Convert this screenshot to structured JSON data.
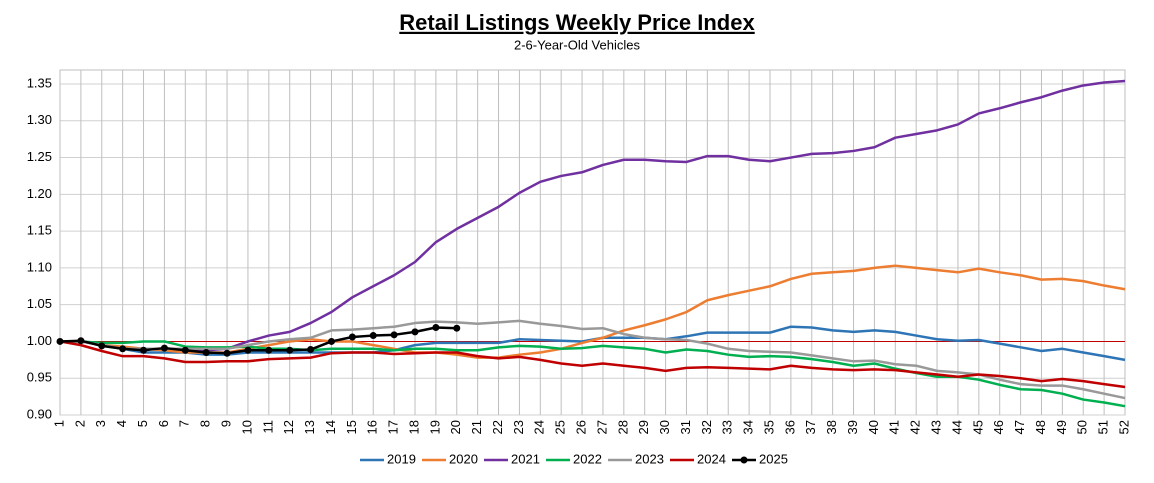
{
  "chart_data": {
    "type": "line",
    "title": "Retail Listings Weekly Price Index",
    "subtitle": "2-6-Year-Old Vehicles",
    "categories": [
      "1",
      "2",
      "3",
      "4",
      "5",
      "6",
      "7",
      "8",
      "9",
      "10",
      "11",
      "12",
      "13",
      "14",
      "15",
      "16",
      "17",
      "18",
      "19",
      "20",
      "21",
      "22",
      "23",
      "24",
      "25",
      "26",
      "27",
      "28",
      "29",
      "30",
      "31",
      "32",
      "33",
      "34",
      "35",
      "36",
      "37",
      "38",
      "39",
      "40",
      "41",
      "42",
      "43",
      "44",
      "45",
      "46",
      "47",
      "48",
      "49",
      "50",
      "51",
      "52"
    ],
    "ylim": [
      0.9,
      1.35
    ],
    "yticks": [
      {
        "value": 0.9,
        "label": "0.90"
      },
      0.95,
      {
        "value": 1.0,
        "label": "1.00"
      },
      1.05,
      {
        "value": 1.1,
        "label": "1.10"
      },
      1.15,
      {
        "value": 1.2,
        "label": "1.20"
      },
      1.25,
      {
        "value": 1.3,
        "label": "1.30"
      },
      1.35
    ],
    "grid": true,
    "legend": "bottom",
    "reference_line": {
      "value": 1.0,
      "color": "#c00000"
    },
    "series": [
      {
        "name": "2019",
        "color": "#2e75b6",
        "values": [
          1.0,
          1.0,
          0.995,
          0.99,
          0.985,
          0.985,
          0.985,
          0.982,
          0.982,
          0.985,
          0.985,
          0.985,
          0.985,
          0.985,
          0.985,
          0.985,
          0.988,
          0.995,
          0.998,
          0.998,
          0.998,
          0.998,
          1.003,
          1.002,
          1.001,
          1.0,
          1.005,
          1.005,
          1.005,
          1.003,
          1.007,
          1.012,
          1.012,
          1.012,
          1.012,
          1.02,
          1.019,
          1.015,
          1.013,
          1.015,
          1.013,
          1.008,
          1.003,
          1.001,
          1.002,
          0.997,
          0.992,
          0.987,
          0.99,
          0.985,
          0.98,
          0.975
        ]
      },
      {
        "name": "2020",
        "color": "#ed7d31",
        "values": [
          1.0,
          1.0,
          0.995,
          0.993,
          0.99,
          0.988,
          0.985,
          0.985,
          0.985,
          0.99,
          0.995,
          1.0,
          1.003,
          1.0,
          1.0,
          0.995,
          0.99,
          0.985,
          0.985,
          0.982,
          0.978,
          0.978,
          0.982,
          0.985,
          0.99,
          0.998,
          1.005,
          1.015,
          1.022,
          1.03,
          1.04,
          1.056,
          1.063,
          1.069,
          1.075,
          1.085,
          1.092,
          1.094,
          1.096,
          1.1,
          1.103,
          1.1,
          1.097,
          1.094,
          1.099,
          1.094,
          1.09,
          1.084,
          1.085,
          1.082,
          1.076,
          1.071
        ]
      },
      {
        "name": "2021",
        "color": "#7030a0",
        "values": [
          1.0,
          1.0,
          0.995,
          0.99,
          0.99,
          0.99,
          0.99,
          0.988,
          0.99,
          1.0,
          1.008,
          1.013,
          1.025,
          1.04,
          1.06,
          1.075,
          1.09,
          1.108,
          1.135,
          1.153,
          1.168,
          1.183,
          1.202,
          1.217,
          1.225,
          1.23,
          1.24,
          1.247,
          1.247,
          1.245,
          1.244,
          1.252,
          1.252,
          1.247,
          1.245,
          1.25,
          1.255,
          1.256,
          1.259,
          1.264,
          1.277,
          1.282,
          1.287,
          1.295,
          1.31,
          1.317,
          1.325,
          1.332,
          1.341,
          1.348,
          1.352,
          1.354
        ]
      },
      {
        "name": "2022",
        "color": "#00b050",
        "values": [
          1.0,
          1.0,
          0.998,
          0.998,
          1.0,
          1.0,
          0.993,
          0.992,
          0.992,
          0.993,
          0.99,
          0.99,
          0.988,
          0.99,
          0.99,
          0.99,
          0.988,
          0.99,
          0.99,
          0.988,
          0.988,
          0.992,
          0.994,
          0.993,
          0.99,
          0.991,
          0.994,
          0.992,
          0.99,
          0.985,
          0.989,
          0.987,
          0.982,
          0.979,
          0.98,
          0.979,
          0.976,
          0.972,
          0.967,
          0.97,
          0.963,
          0.957,
          0.952,
          0.952,
          0.948,
          0.941,
          0.935,
          0.934,
          0.929,
          0.921,
          0.917,
          0.912
        ]
      },
      {
        "name": "2023",
        "color": "#999999",
        "values": [
          1.0,
          1.0,
          0.995,
          0.99,
          0.99,
          0.99,
          0.99,
          0.99,
          0.99,
          0.995,
          1.0,
          1.003,
          1.005,
          1.015,
          1.016,
          1.018,
          1.02,
          1.025,
          1.027,
          1.026,
          1.024,
          1.026,
          1.028,
          1.024,
          1.021,
          1.017,
          1.018,
          1.01,
          1.005,
          1.003,
          1.002,
          0.997,
          0.99,
          0.987,
          0.986,
          0.985,
          0.981,
          0.977,
          0.973,
          0.974,
          0.969,
          0.967,
          0.96,
          0.958,
          0.955,
          0.948,
          0.942,
          0.94,
          0.94,
          0.935,
          0.929,
          0.923
        ]
      },
      {
        "name": "2024",
        "color": "#c00000",
        "values": [
          1.0,
          0.995,
          0.987,
          0.98,
          0.98,
          0.977,
          0.972,
          0.972,
          0.973,
          0.973,
          0.976,
          0.977,
          0.978,
          0.984,
          0.985,
          0.985,
          0.983,
          0.984,
          0.985,
          0.985,
          0.98,
          0.977,
          0.979,
          0.975,
          0.97,
          0.967,
          0.97,
          0.967,
          0.964,
          0.96,
          0.964,
          0.965,
          0.964,
          0.963,
          0.962,
          0.967,
          0.964,
          0.962,
          0.961,
          0.962,
          0.961,
          0.958,
          0.955,
          0.952,
          0.955,
          0.953,
          0.95,
          0.946,
          0.949,
          0.946,
          0.942,
          0.938
        ]
      },
      {
        "name": "2025",
        "color": "#000000",
        "marker": "circle",
        "values": [
          1.0,
          1.001,
          0.994,
          0.99,
          0.988,
          0.991,
          0.988,
          0.985,
          0.984,
          0.988,
          0.988,
          0.988,
          0.989,
          1.0,
          1.006,
          1.008,
          1.009,
          1.013,
          1.019,
          1.018,
          null,
          null,
          null,
          null,
          null,
          null,
          null,
          null,
          null,
          null,
          null,
          null,
          null,
          null,
          null,
          null,
          null,
          null,
          null,
          null,
          null,
          null,
          null,
          null,
          null,
          null,
          null,
          null,
          null,
          null,
          null,
          null
        ]
      }
    ]
  }
}
